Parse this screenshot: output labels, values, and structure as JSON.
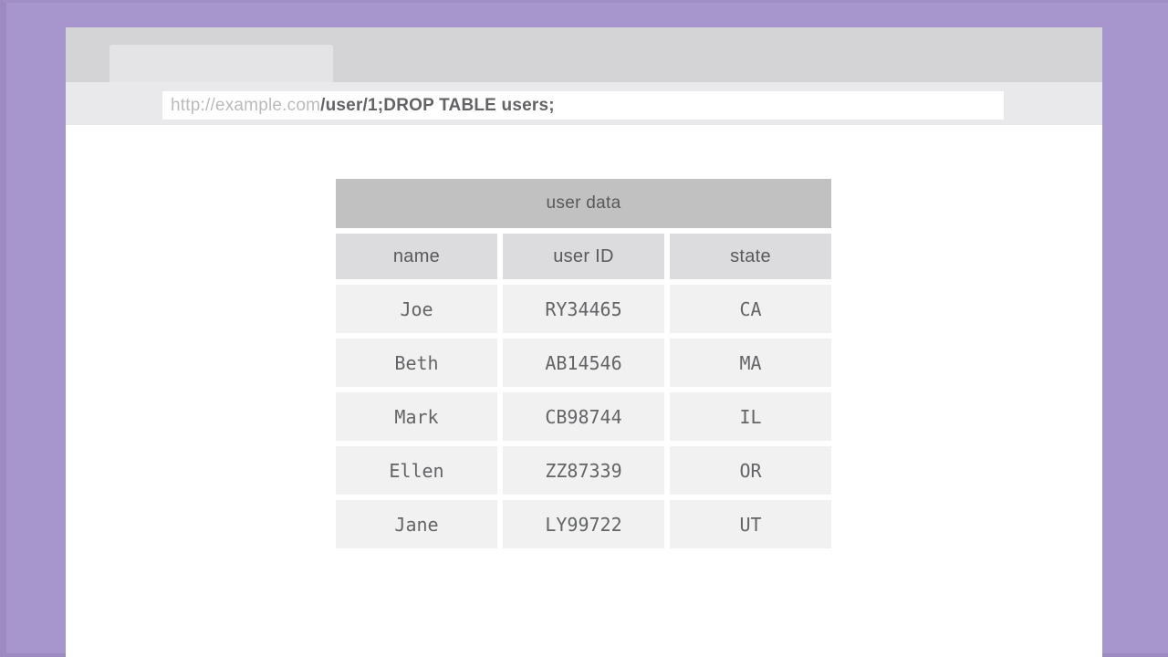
{
  "browser": {
    "url_domain": "http://example.com",
    "url_path": "/user/1;DROP TABLE users;"
  },
  "table": {
    "title": "user data",
    "columns": [
      "name",
      "user ID",
      "state"
    ],
    "rows": [
      [
        "Joe",
        "RY34465",
        "CA"
      ],
      [
        "Beth",
        "AB14546",
        "MA"
      ],
      [
        "Mark",
        "CB98744",
        "IL"
      ],
      [
        "Ellen",
        "ZZ87339",
        "OR"
      ],
      [
        "Jane",
        "LY99722",
        "UT"
      ]
    ]
  },
  "colors": {
    "backdrop_purple": "#a795cd",
    "backdrop_edge_purple": "#9c8ac1",
    "chrome_gray": "#d4d4d6",
    "tab_gray": "#e4e4e6",
    "url_row_gray": "#e9e9eb",
    "url_domain_text": "#bbbbbd",
    "url_path_text": "#636366",
    "table_banner_gray": "#c1c1c2",
    "table_header_gray": "#dcdcde",
    "table_cell_gray": "#f1f1f2",
    "table_text": "#5d5e60"
  }
}
